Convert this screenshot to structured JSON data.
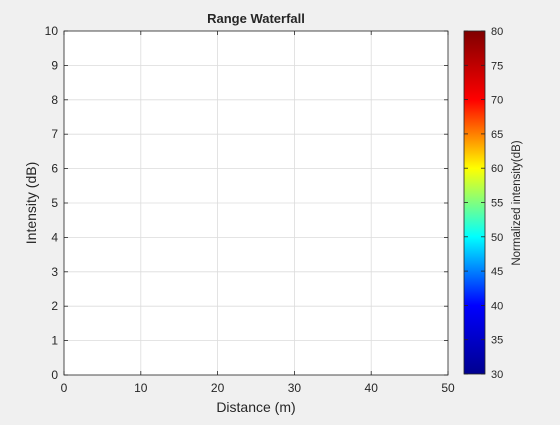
{
  "chart_data": {
    "type": "heatmap",
    "title": "Range Waterfall",
    "xlabel": "Distance (m)",
    "ylabel": "Intensity (dB)",
    "xlim": [
      0,
      50
    ],
    "ylim": [
      0,
      10
    ],
    "xticks": [
      "0",
      "10",
      "20",
      "30",
      "40",
      "50"
    ],
    "yticks": [
      "0",
      "1",
      "2",
      "3",
      "4",
      "5",
      "6",
      "7",
      "8",
      "9",
      "10"
    ],
    "grid": true,
    "values": [],
    "colorbar": {
      "label": "Normalized intensity(dB)",
      "range": [
        30,
        80
      ],
      "ticks": [
        "30",
        "35",
        "40",
        "45",
        "50",
        "55",
        "60",
        "65",
        "70",
        "75",
        "80"
      ],
      "colormap": "jet"
    }
  },
  "colors": {
    "plot_background": "#ffffff",
    "figure_background": "#f0f0f0",
    "grid": "#dcdcdc",
    "axis": "#262626",
    "jet_stops": [
      "#00008f",
      "#0000ff",
      "#00ffff",
      "#ffff00",
      "#ff0000",
      "#800000"
    ]
  }
}
